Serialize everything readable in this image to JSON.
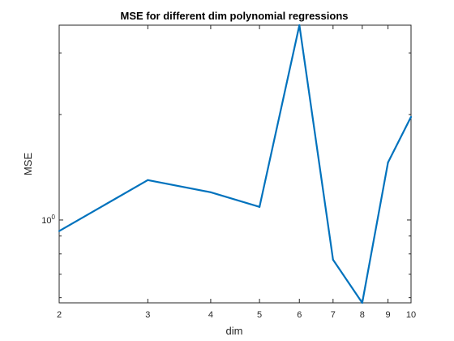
{
  "chart_data": {
    "type": "line",
    "title": "MSE for different dim polynomial regressions",
    "xlabel": "dim",
    "ylabel": "MSE",
    "x_scale": "log",
    "y_scale": "log",
    "xlim": [
      2,
      10
    ],
    "ylim": [
      0.58,
      3.6
    ],
    "x_ticks": [
      2,
      3,
      4,
      5,
      6,
      7,
      8,
      9,
      10
    ],
    "x_tick_labels": [
      "2",
      "3",
      "4",
      "5",
      "6",
      "7",
      "8",
      "9",
      "10"
    ],
    "y_major_tick": {
      "base": "10",
      "exponent": "0",
      "value": 1
    },
    "grid": false,
    "box": true,
    "series": [
      {
        "color": "#0072BD",
        "x": [
          2,
          3,
          4,
          5,
          6,
          7,
          8,
          9,
          10
        ],
        "y": [
          0.93,
          1.3,
          1.2,
          1.09,
          3.6,
          0.77,
          0.58,
          1.46,
          1.97
        ]
      }
    ]
  }
}
